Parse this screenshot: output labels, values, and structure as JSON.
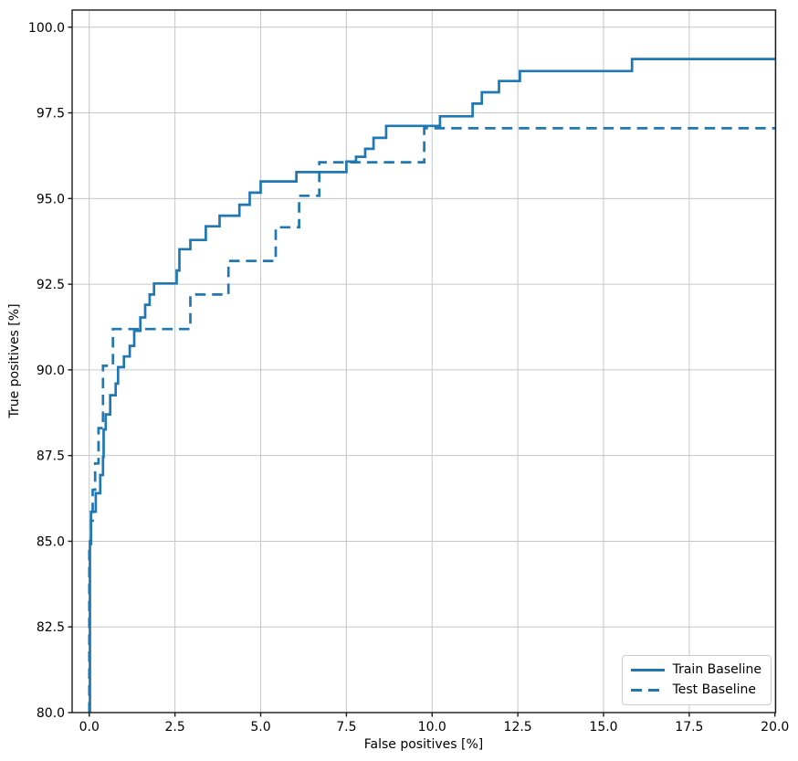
{
  "chart_data": {
    "type": "line",
    "title": "",
    "xlabel": "False positives [%]",
    "ylabel": "True positives [%]",
    "xlim": [
      -0.5,
      20.02
    ],
    "ylim": [
      80.0,
      100.5
    ],
    "xticks": [
      0.0,
      2.5,
      5.0,
      7.5,
      10.0,
      12.5,
      15.0,
      17.5,
      20.0
    ],
    "yticks": [
      80.0,
      82.5,
      85.0,
      87.5,
      90.0,
      92.5,
      95.0,
      97.5,
      100.0
    ],
    "grid": true,
    "grid_color": "#c6c6c6",
    "spine_color": "#1a1a1a",
    "line_color": "#1f77b4",
    "legend_position": "lower right",
    "series": [
      {
        "name": "Train Baseline",
        "style": "solid",
        "points": [
          [
            0.02,
            80.0
          ],
          [
            0.02,
            85.0
          ],
          [
            0.05,
            85.0
          ],
          [
            0.05,
            85.86
          ],
          [
            0.19,
            85.86
          ],
          [
            0.19,
            86.4
          ],
          [
            0.32,
            86.4
          ],
          [
            0.32,
            86.93
          ],
          [
            0.4,
            86.93
          ],
          [
            0.4,
            87.46
          ],
          [
            0.42,
            87.46
          ],
          [
            0.42,
            88.26
          ],
          [
            0.48,
            88.26
          ],
          [
            0.48,
            88.7
          ],
          [
            0.61,
            88.7
          ],
          [
            0.61,
            89.26
          ],
          [
            0.77,
            89.26
          ],
          [
            0.77,
            89.6
          ],
          [
            0.84,
            89.6
          ],
          [
            0.84,
            90.08
          ],
          [
            1.01,
            90.08
          ],
          [
            1.01,
            90.39
          ],
          [
            1.18,
            90.39
          ],
          [
            1.18,
            90.7
          ],
          [
            1.31,
            90.7
          ],
          [
            1.31,
            91.14
          ],
          [
            1.49,
            91.14
          ],
          [
            1.49,
            91.53
          ],
          [
            1.63,
            91.53
          ],
          [
            1.63,
            91.9
          ],
          [
            1.76,
            91.9
          ],
          [
            1.76,
            92.2
          ],
          [
            1.89,
            92.2
          ],
          [
            1.89,
            92.52
          ],
          [
            2.55,
            92.52
          ],
          [
            2.55,
            92.9
          ],
          [
            2.63,
            92.9
          ],
          [
            2.63,
            93.52
          ],
          [
            2.95,
            93.52
          ],
          [
            2.95,
            93.79
          ],
          [
            3.4,
            93.79
          ],
          [
            3.4,
            94.19
          ],
          [
            3.8,
            94.19
          ],
          [
            3.8,
            94.5
          ],
          [
            4.38,
            94.5
          ],
          [
            4.38,
            94.82
          ],
          [
            4.68,
            94.82
          ],
          [
            4.68,
            95.17
          ],
          [
            5.0,
            95.17
          ],
          [
            5.0,
            95.5
          ],
          [
            6.04,
            95.5
          ],
          [
            6.04,
            95.77
          ],
          [
            7.5,
            95.77
          ],
          [
            7.5,
            96.08
          ],
          [
            7.78,
            96.08
          ],
          [
            7.78,
            96.22
          ],
          [
            8.05,
            96.22
          ],
          [
            8.05,
            96.45
          ],
          [
            8.29,
            96.45
          ],
          [
            8.29,
            96.77
          ],
          [
            8.66,
            96.77
          ],
          [
            8.66,
            97.12
          ],
          [
            10.23,
            97.12
          ],
          [
            10.23,
            97.4
          ],
          [
            11.18,
            97.4
          ],
          [
            11.18,
            97.77
          ],
          [
            11.45,
            97.77
          ],
          [
            11.45,
            98.1
          ],
          [
            11.95,
            98.1
          ],
          [
            11.95,
            98.43
          ],
          [
            12.56,
            98.43
          ],
          [
            12.56,
            98.72
          ],
          [
            15.83,
            98.72
          ],
          [
            15.83,
            99.07
          ],
          [
            20.02,
            99.07
          ]
        ]
      },
      {
        "name": "Test Baseline",
        "style": "dashed",
        "points": [
          [
            0.0,
            80.0
          ],
          [
            0.0,
            84.8
          ],
          [
            0.05,
            84.8
          ],
          [
            0.05,
            85.6
          ],
          [
            0.1,
            85.6
          ],
          [
            0.1,
            86.5
          ],
          [
            0.17,
            86.5
          ],
          [
            0.17,
            87.27
          ],
          [
            0.27,
            87.27
          ],
          [
            0.27,
            88.3
          ],
          [
            0.4,
            88.3
          ],
          [
            0.4,
            90.12
          ],
          [
            0.69,
            90.12
          ],
          [
            0.69,
            91.19
          ],
          [
            2.95,
            91.19
          ],
          [
            2.95,
            92.2
          ],
          [
            4.06,
            92.2
          ],
          [
            4.06,
            93.18
          ],
          [
            5.44,
            93.18
          ],
          [
            5.44,
            94.16
          ],
          [
            6.12,
            94.16
          ],
          [
            6.12,
            95.08
          ],
          [
            6.71,
            95.08
          ],
          [
            6.71,
            96.06
          ],
          [
            9.77,
            96.06
          ],
          [
            9.77,
            97.05
          ],
          [
            20.02,
            97.05
          ]
        ]
      }
    ]
  }
}
